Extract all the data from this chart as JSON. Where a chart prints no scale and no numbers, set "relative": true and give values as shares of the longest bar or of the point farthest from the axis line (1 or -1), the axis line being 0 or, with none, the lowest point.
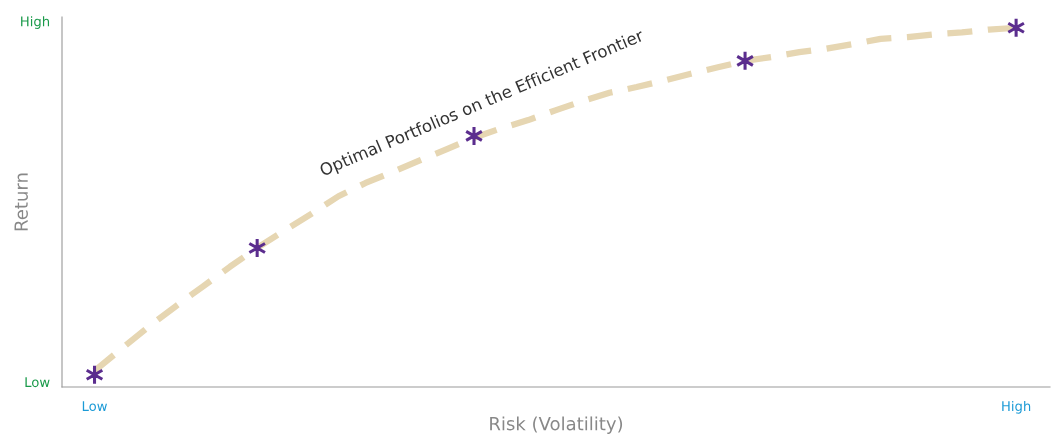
{
  "chart_data": {
    "type": "line",
    "relative": true,
    "xlabel": "Risk (Volatility)",
    "ylabel": "Return",
    "categories": [
      "Low",
      null,
      null,
      null,
      null,
      null,
      null,
      null,
      null,
      null,
      null,
      null,
      null,
      null,
      null,
      null,
      null,
      null,
      null,
      null,
      null,
      null,
      null,
      null,
      null,
      null,
      null,
      null,
      null,
      null,
      null,
      null,
      null,
      null,
      "High"
    ],
    "series": [
      {
        "color": "#e6d6b2",
        "line_style": "dashed",
        "marker": "none",
        "values": [
          0.045,
          0.107,
          0.168,
          0.225,
          0.28,
          0.335,
          0.387,
          0.435,
          0.482,
          0.531,
          0.568,
          0.599,
          0.631,
          0.662,
          0.694,
          0.72,
          0.743,
          0.77,
          0.796,
          0.819,
          0.835,
          0.853,
          0.872,
          0.89,
          0.908,
          0.919,
          0.932,
          0.942,
          0.955,
          0.969,
          0.974,
          0.982,
          0.987,
          0.995,
          1.0
        ]
      },
      {
        "type": "scatter",
        "color": "#5b2d8e",
        "marker": "cross",
        "values": [
          0.034,
          null,
          null,
          null,
          null,
          null,
          0.387,
          null,
          null,
          null,
          null,
          null,
          null,
          null,
          0.699,
          null,
          null,
          null,
          null,
          null,
          null,
          null,
          null,
          null,
          0.908,
          null,
          null,
          null,
          null,
          null,
          null,
          null,
          null,
          null,
          1.0
        ]
      }
    ],
    "annotations": [
      "Low",
      "High",
      "Optimal Portfolios on the Efficient Frontier"
    ]
  }
}
